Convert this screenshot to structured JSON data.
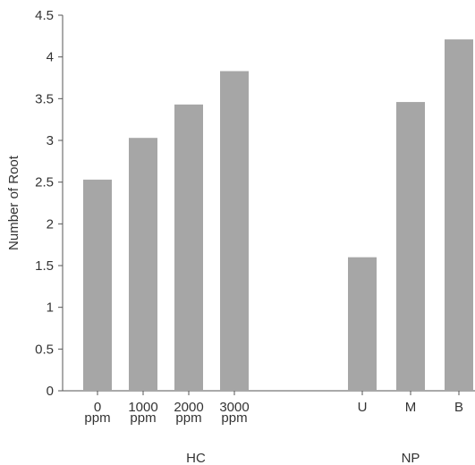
{
  "chart_data": {
    "type": "bar",
    "ylabel": "Number of Root",
    "ylim": [
      0,
      4.5
    ],
    "yticks": [
      "0",
      "0.5",
      "1",
      "1.5",
      "2",
      "2.5",
      "3",
      "3.5",
      "4",
      "4.5"
    ],
    "bar_color": "#a6a6a6",
    "grid": false,
    "legend": "none",
    "groups": [
      {
        "name": "HC",
        "categories": [
          {
            "label_line1": "0",
            "label_line2": "ppm",
            "value": 2.53
          },
          {
            "label_line1": "1000",
            "label_line2": "ppm",
            "value": 3.03
          },
          {
            "label_line1": "2000",
            "label_line2": "ppm",
            "value": 3.43
          },
          {
            "label_line1": "3000",
            "label_line2": "ppm",
            "value": 3.83
          }
        ]
      },
      {
        "name": "NP",
        "categories": [
          {
            "label_line1": "U",
            "label_line2": "",
            "value": 1.6
          },
          {
            "label_line1": "M",
            "label_line2": "",
            "value": 3.46
          },
          {
            "label_line1": "B",
            "label_line2": "",
            "value": 4.21
          }
        ]
      }
    ]
  }
}
